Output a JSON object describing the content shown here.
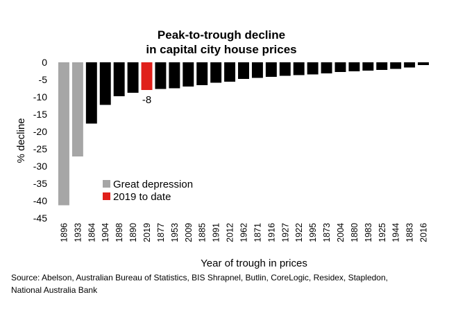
{
  "chart_data": {
    "type": "bar",
    "title": [
      "Peak-to-trough decline",
      "in capital city house prices"
    ],
    "xlabel": "Year of trough in prices",
    "ylabel": "% decline",
    "ylim": [
      -45,
      0
    ],
    "yticks": [
      0,
      -5,
      -10,
      -15,
      -20,
      -25,
      -30,
      -35,
      -40,
      -45
    ],
    "grid": false,
    "categories": [
      "1896",
      "1933",
      "1864",
      "1904",
      "1898",
      "1890",
      "2019",
      "1877",
      "1953",
      "2009",
      "1885",
      "1991",
      "2012",
      "1962",
      "1871",
      "1916",
      "1927",
      "1922",
      "1995",
      "1873",
      "2004",
      "1880",
      "1983",
      "1925",
      "1944",
      "1883",
      "2016"
    ],
    "values": [
      -41.3,
      -27.2,
      -17.7,
      -12.3,
      -9.8,
      -8.8,
      -8,
      -7.7,
      -7.5,
      -7.0,
      -6.6,
      -5.9,
      -5.6,
      -4.8,
      -4.5,
      -4.2,
      -3.9,
      -3.7,
      -3.5,
      -3.2,
      -2.8,
      -2.6,
      -2.4,
      -2.2,
      -1.9,
      -1.5,
      -0.8
    ],
    "groups": [
      "great_depression",
      "great_depression",
      "other",
      "other",
      "other",
      "other",
      "current",
      "other",
      "other",
      "other",
      "other",
      "other",
      "other",
      "other",
      "other",
      "other",
      "other",
      "other",
      "other",
      "other",
      "other",
      "other",
      "other",
      "other",
      "other",
      "other",
      "other"
    ],
    "colors": {
      "great_depression": "#a6a6a6",
      "current": "#e0201b",
      "other": "#000000"
    },
    "data_labels": [
      {
        "category": "2019",
        "text": "-8"
      }
    ],
    "legend": {
      "placement": "lower-left",
      "items": [
        {
          "label": "Great depression",
          "group": "great_depression"
        },
        {
          "label": "2019 to date",
          "group": "current"
        }
      ]
    }
  },
  "source": {
    "line1": "Source: Abelson, Australian Bureau of Statistics, BIS Shrapnel, Butlin, CoreLogic, Residex, Stapledon,",
    "line2": "National Australia Bank"
  }
}
